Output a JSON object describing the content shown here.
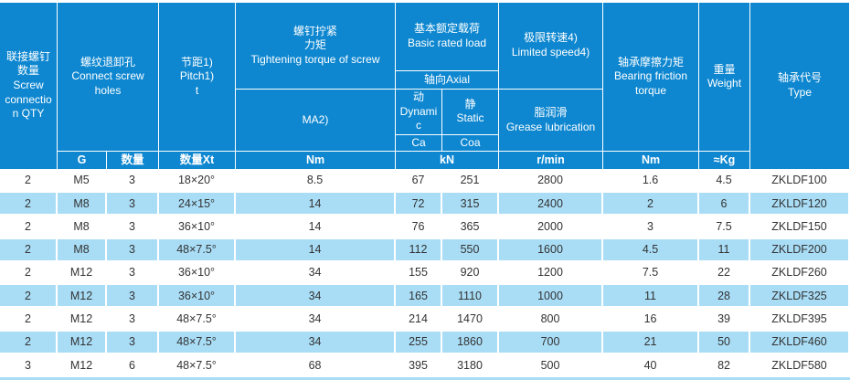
{
  "colors": {
    "header_bg": "#0E87D0",
    "header_text": "#FFFFFF",
    "row_bg": "#FFFFFF",
    "row_alt_bg": "#A9DDF6",
    "data_text": "#333333"
  },
  "table": {
    "header": {
      "screw_connection": "联接螺钉数量\nScrew connection QTY",
      "connect_screw_holes": "螺纹退卸孔\nConnect screw holes",
      "pitch": "节距1)\nPitch1)\nt",
      "tightening_torque": "螺钉拧紧\n力矩\nTightening torque of screw",
      "ma2": "MA2)",
      "basic_rated_load": "基本额定载荷\nBasic rated load",
      "axial": "轴向Axial",
      "dynamic": "动\nDynamic",
      "static": "静\nStatic",
      "ca": "Ca",
      "coa": "Coa",
      "limited_speed": "极限转速4)\nLimited speed4)",
      "grease_lubrication": "脂润滑\nGrease lubrication",
      "bearing_friction": "轴承摩擦力矩Bearing friction torque",
      "weight": "重量\nWeight",
      "type": "轴承代号\nType"
    },
    "units": [
      "G",
      "数量",
      "数量Xt",
      "Nm",
      "kN",
      "r/min",
      "Nm",
      "≈Kg"
    ],
    "rows": [
      [
        "2",
        "M5",
        "3",
        "18×20°",
        "8.5",
        "67",
        "251",
        "2800",
        "1.6",
        "4.5",
        "ZKLDF100"
      ],
      [
        "2",
        "M8",
        "3",
        "24×15°",
        "14",
        "72",
        "315",
        "2400",
        "2",
        "6",
        "ZKLDF120"
      ],
      [
        "2",
        "M8",
        "3",
        "36×10°",
        "14",
        "76",
        "365",
        "2000",
        "3",
        "7.5",
        "ZKLDF150"
      ],
      [
        "2",
        "M8",
        "3",
        "48×7.5°",
        "14",
        "112",
        "550",
        "1600",
        "4.5",
        "11",
        "ZKLDF200"
      ],
      [
        "2",
        "M12",
        "3",
        "36×10°",
        "34",
        "155",
        "920",
        "1200",
        "7.5",
        "22",
        "ZKLDF260"
      ],
      [
        "2",
        "M12",
        "3",
        "36×10°",
        "34",
        "165",
        "1110",
        "1000",
        "11",
        "28",
        "ZKLDF325"
      ],
      [
        "2",
        "M12",
        "3",
        "48×7.5°",
        "34",
        "214",
        "1470",
        "800",
        "16",
        "39",
        "ZKLDF395"
      ],
      [
        "2",
        "M12",
        "3",
        "48×7.5°",
        "34",
        "255",
        "1860",
        "700",
        "21",
        "50",
        "ZKLDF460"
      ],
      [
        "3",
        "M12",
        "6",
        "48×7.5°",
        "68",
        "395",
        "3180",
        "500",
        "40",
        "82",
        "ZKLDF580"
      ]
    ]
  }
}
